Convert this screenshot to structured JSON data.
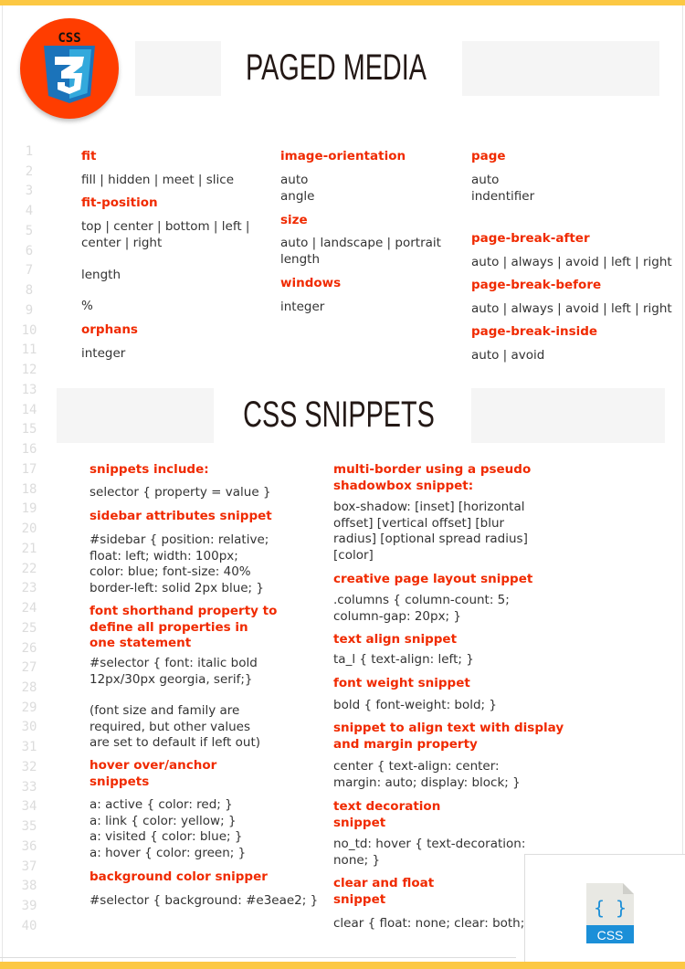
{
  "colors": {
    "accent": "#f02a00",
    "top_bar": "#fcc843",
    "text": "#333333",
    "logo_bg": "#ff3d00",
    "css_blue": "#1b73ba"
  },
  "logo": {
    "text": "CSS",
    "numeral": "3",
    "icon": "css3-shield-icon"
  },
  "header": {
    "title": "PAGED MEDIA"
  },
  "line_numbers": [
    "1",
    "2",
    "3",
    "4",
    "5",
    "6",
    "7",
    "8",
    "9",
    "10",
    "11",
    "12",
    "13",
    "14",
    "15",
    "16",
    "17",
    "18",
    "19",
    "20",
    "21",
    "22",
    "23",
    "24",
    "25",
    "26",
    "27",
    "28",
    "29",
    "30",
    "31",
    "32",
    "33",
    "34",
    "35",
    "36",
    "37",
    "38",
    "39",
    "40"
  ],
  "paged_media": {
    "fit": {
      "heading": "fit",
      "values": "fill | hidden | meet | slice"
    },
    "fit_position": {
      "heading": "fit-position",
      "values": "top | center | bottom | left |\ncenter | right",
      "value2": "length",
      "value3": "%"
    },
    "orphans": {
      "heading": "orphans",
      "values": "integer"
    },
    "image_orientation": {
      "heading": "image-orientation",
      "values": "auto\nangle"
    },
    "size": {
      "heading": "size",
      "values": "auto | landscape | portrait\nlength"
    },
    "windows": {
      "heading": "windows",
      "values": "integer"
    },
    "page": {
      "heading": "page",
      "values": "auto\nindentifier"
    },
    "page_break_after": {
      "heading": "page-break-after",
      "values": "auto | always | avoid | left | right"
    },
    "page_break_before": {
      "heading": "page-break-before",
      "values": "auto | always | avoid | left | right"
    },
    "page_break_inside": {
      "heading": "page-break-inside",
      "values": "auto | avoid"
    }
  },
  "snippets_section": {
    "title": "CSS SNIPPETS"
  },
  "snippets": {
    "include": {
      "heading": "snippets include:",
      "code": "selector { property = value }"
    },
    "sidebar": {
      "heading": "sidebar attributes snippet",
      "code": "#sidebar { position: relative;\nfloat: left; width: 100px;\ncolor: blue; font-size: 40%\nborder-left: solid 2px blue; }"
    },
    "font": {
      "heading": "font shorthand property to\ndefine all properties in\none statement",
      "code": "#selector { font: italic bold\n12px/30px georgia, serif;}",
      "note": "(font size and family are\nrequired, but other values\nare set to default if left out)"
    },
    "hover": {
      "heading": "hover over/anchor\nsnippets",
      "code": "a: active { color: red; }\na: link { color: yellow; }\na: visited { color: blue; }\na: hover { color: green; }"
    },
    "background": {
      "heading": "background color snipper",
      "code": "#selector { background: #e3eae2; }"
    },
    "multi_border": {
      "heading": "multi-border using a pseudo\nshadowbox snippet:",
      "code": "box-shadow: [inset] [horizontal\noffset] [vertical offset] [blur\nradius] [optional spread radius]\n[color]"
    },
    "layout": {
      "heading": "creative page layout snippet",
      "code": ".columns { column-count: 5;\ncolumn-gap: 20px; }"
    },
    "text_align": {
      "heading": "text align snippet",
      "code": "ta_l { text-align: left; }"
    },
    "font_weight": {
      "heading": "font weight snippet",
      "code": "bold { font-weight: bold; }"
    },
    "align_display": {
      "heading": "snippet to align text with display\nand margin property",
      "code": "center { text-align: center:\nmargin: auto; display: block; }"
    },
    "text_decoration": {
      "heading": "text decoration\nsnippet",
      "code": "no_td: hover { text-decoration:\nnone; }"
    },
    "clear_float": {
      "heading": "clear and float\nsnippet",
      "code": "clear { float: none; clear: both; }"
    }
  },
  "file_icon": {
    "icon": "css-file-icon",
    "braces": "{ }",
    "label": "CSS"
  }
}
